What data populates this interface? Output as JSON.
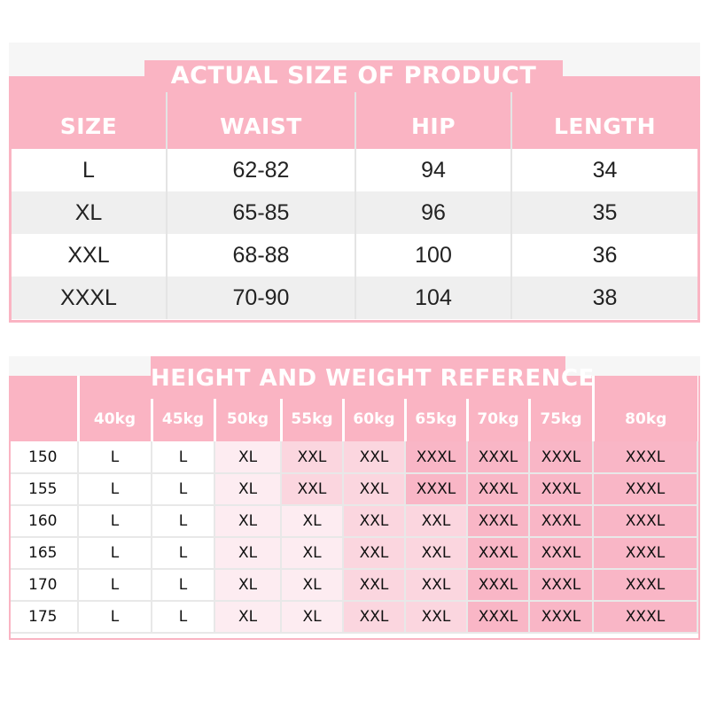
{
  "product_size": {
    "title": "ACTUAL SIZE OF PRODUCT",
    "columns": [
      "SIZE",
      "WAIST",
      "HIP",
      "LENGTH"
    ],
    "rows": [
      [
        "L",
        "62-82",
        "94",
        "34"
      ],
      [
        "XL",
        "65-85",
        "96",
        "35"
      ],
      [
        "XXL",
        "68-88",
        "100",
        "36"
      ],
      [
        "XXXL",
        "70-90",
        "104",
        "38"
      ]
    ]
  },
  "reference": {
    "title": "HEIGHT AND WEIGHT REFERENCE",
    "weights": [
      "",
      "40kg",
      "45kg",
      "50kg",
      "55kg",
      "60kg",
      "65kg",
      "70kg",
      "75kg",
      "80kg"
    ],
    "rows": [
      {
        "height": "150",
        "sizes": [
          "L",
          "L",
          "XL",
          "XXL",
          "XXL",
          "XXXL",
          "XXXL",
          "XXXL",
          "XXXL"
        ]
      },
      {
        "height": "155",
        "sizes": [
          "L",
          "L",
          "XL",
          "XXL",
          "XXL",
          "XXXL",
          "XXXL",
          "XXXL",
          "XXXL"
        ]
      },
      {
        "height": "160",
        "sizes": [
          "L",
          "L",
          "XL",
          "XL",
          "XXL",
          "XXL",
          "XXXL",
          "XXXL",
          "XXXL"
        ]
      },
      {
        "height": "165",
        "sizes": [
          "L",
          "L",
          "XL",
          "XL",
          "XXL",
          "XXL",
          "XXXL",
          "XXXL",
          "XXXL"
        ]
      },
      {
        "height": "170",
        "sizes": [
          "L",
          "L",
          "XL",
          "XL",
          "XXL",
          "XXL",
          "XXXL",
          "XXXL",
          "XXXL"
        ]
      },
      {
        "height": "175",
        "sizes": [
          "L",
          "L",
          "XL",
          "XL",
          "XXL",
          "XXL",
          "XXXL",
          "XXXL",
          "XXXL"
        ]
      }
    ]
  },
  "colors": {
    "accent_pink": "#fab4c3",
    "shade_xl": "#fdecf1",
    "shade_xxl": "#fbd6df",
    "shade_xxxl": "#f9b6c6",
    "stripe_gray": "#efefef"
  }
}
